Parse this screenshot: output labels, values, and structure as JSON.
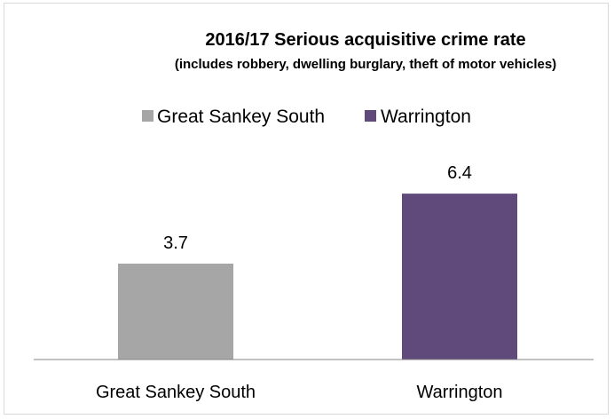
{
  "chart_data": {
    "type": "bar",
    "title": "2016/17 Serious acquisitive crime rate",
    "subtitle": "(includes robbery, dwelling burglary, theft of motor vehicles)",
    "categories": [
      "Great Sankey South",
      "Warrington"
    ],
    "values": [
      3.7,
      6.4
    ],
    "colors": [
      "#a6a6a6",
      "#604a7b"
    ],
    "legend": {
      "position": "top",
      "entries": [
        {
          "label": "Great Sankey South",
          "color": "#a6a6a6"
        },
        {
          "label": "Warrington",
          "color": "#604a7b"
        }
      ]
    },
    "data_labels": [
      "3.7",
      "6.4"
    ],
    "ylim": [
      0,
      10
    ],
    "grid": false,
    "xlabel": "",
    "ylabel": ""
  }
}
